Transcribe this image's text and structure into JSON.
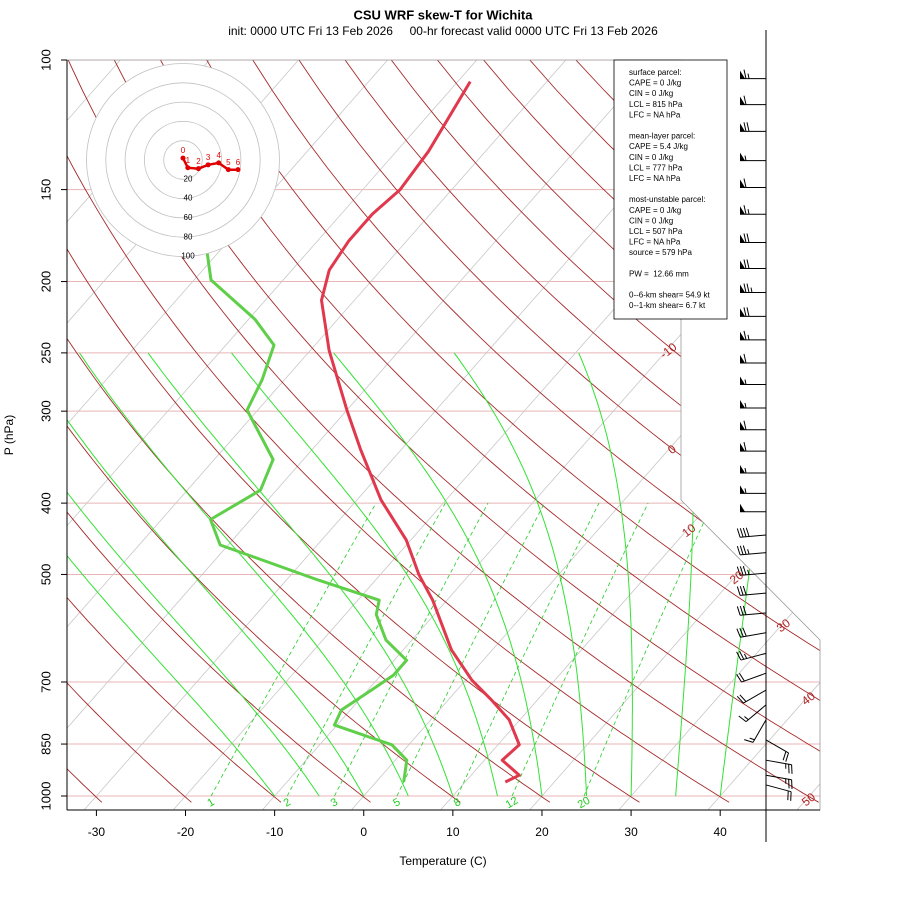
{
  "chart_data": {
    "type": "skewt",
    "title": "CSU WRF skew-T for Wichita",
    "subtitle": "init: 0000 UTC Fri 13 Feb 2026     00-hr forecast valid 0000 UTC Fri 13 Feb 2026",
    "x_label": "Temperature (C)",
    "y_label": "P (hPa)",
    "log_y": true,
    "xlim": [
      -33.3,
      51.2
    ],
    "ylim": [
      1000,
      100
    ],
    "xticks": [
      -30,
      -20,
      -10,
      0,
      10,
      20,
      30,
      40
    ],
    "yticks": [
      100,
      150,
      200,
      250,
      300,
      400,
      500,
      700,
      850,
      1000
    ],
    "grid": true,
    "series": [
      {
        "color": "#e0384c",
        "pressure": [
          957,
          937,
          894,
          852,
          788,
          741,
          696,
          633,
          542,
          500,
          449,
          396,
          338,
          299,
          248,
          212,
          193,
          176,
          162,
          150,
          133,
          107
        ],
        "values": [
          14.5,
          15.4,
          12.0,
          12.4,
          8.8,
          4.9,
          0.7,
          -4.6,
          -11.6,
          -15.7,
          -20.5,
          -27.3,
          -34.6,
          -40.0,
          -47.9,
          -53.7,
          -55.8,
          -56.5,
          -56.5,
          -55.8,
          -56.4,
          -58.6
        ]
      },
      {
        "color": "#5fcf4a",
        "pressure": [
          957,
          894,
          852,
          801,
          764,
          718,
          685,
          654,
          614,
          567,
          542,
          509,
          456,
          421,
          384,
          349,
          299,
          272,
          244,
          225,
          199,
          176
        ],
        "values": [
          3.1,
          1.3,
          -1.9,
          -10.3,
          -11.0,
          -9.6,
          -8.6,
          -8.6,
          -12.9,
          -16.5,
          -17.6,
          -26.4,
          -40.9,
          -44.5,
          -41.8,
          -43.4,
          -51.2,
          -52.5,
          -54.6,
          -59.3,
          -68.1,
          -72.6
        ]
      }
    ],
    "isotherm_labels": [
      -10,
      0,
      10,
      20,
      30,
      40,
      50
    ],
    "mixing_ratio_labels": [
      1,
      2,
      3,
      5,
      8,
      12,
      20
    ],
    "hodograph": {
      "rings": [
        20,
        40,
        60,
        80,
        100
      ],
      "labels": [
        0,
        1,
        2,
        3,
        4,
        5,
        6
      ],
      "u": [
        0,
        5,
        16,
        26,
        37,
        47,
        57
      ],
      "v": [
        2,
        -8,
        -9,
        -5,
        -3,
        -10,
        -10
      ]
    },
    "winds": {
      "pressure": [
        106,
        115,
        125,
        137,
        149,
        162,
        177,
        192,
        207,
        223,
        240,
        258,
        276,
        297,
        318,
        340,
        364,
        388,
        411,
        442,
        467,
        498,
        530,
        564,
        600,
        640,
        681,
        718,
        752,
        788,
        839,
        894,
        937,
        966
      ],
      "direction": [
        270,
        270,
        270,
        270,
        270,
        270,
        270,
        270,
        270,
        270,
        270,
        270,
        270,
        270,
        270,
        270,
        270,
        270,
        270,
        265,
        265,
        265,
        265,
        265,
        260,
        255,
        250,
        240,
        230,
        210,
        120,
        100,
        100,
        105
      ],
      "speed": [
        65,
        60,
        70,
        55,
        60,
        65,
        70,
        70,
        75,
        70,
        65,
        60,
        55,
        55,
        60,
        60,
        55,
        55,
        50,
        40,
        35,
        35,
        30,
        30,
        30,
        25,
        20,
        20,
        15,
        15,
        20,
        25,
        25,
        20
      ]
    },
    "parcel_box": [
      [
        "surface parcel:",
        "CAPE = 0 J/kg",
        "CIN = 0 J/kg",
        "LCL = 815 hPa",
        "LFC = NA hPa"
      ],
      [
        "mean-layer parcel:",
        "CAPE = 5.4 J/kg",
        "CIN = 0 J/kg",
        "LCL = 777 hPa",
        "LFC = NA hPa"
      ],
      [
        "most-unstable parcel:",
        "CAPE = 0 J/kg",
        "CIN = 0 J/kg",
        "LCL = 507 hPa",
        "LFC = NA hPa",
        "source = 579 hPa"
      ],
      [
        "PW =  12.66 mm"
      ],
      [
        "0--6-km shear= 54.9 kt",
        "0--1-km shear= 6.7 kt"
      ]
    ]
  }
}
